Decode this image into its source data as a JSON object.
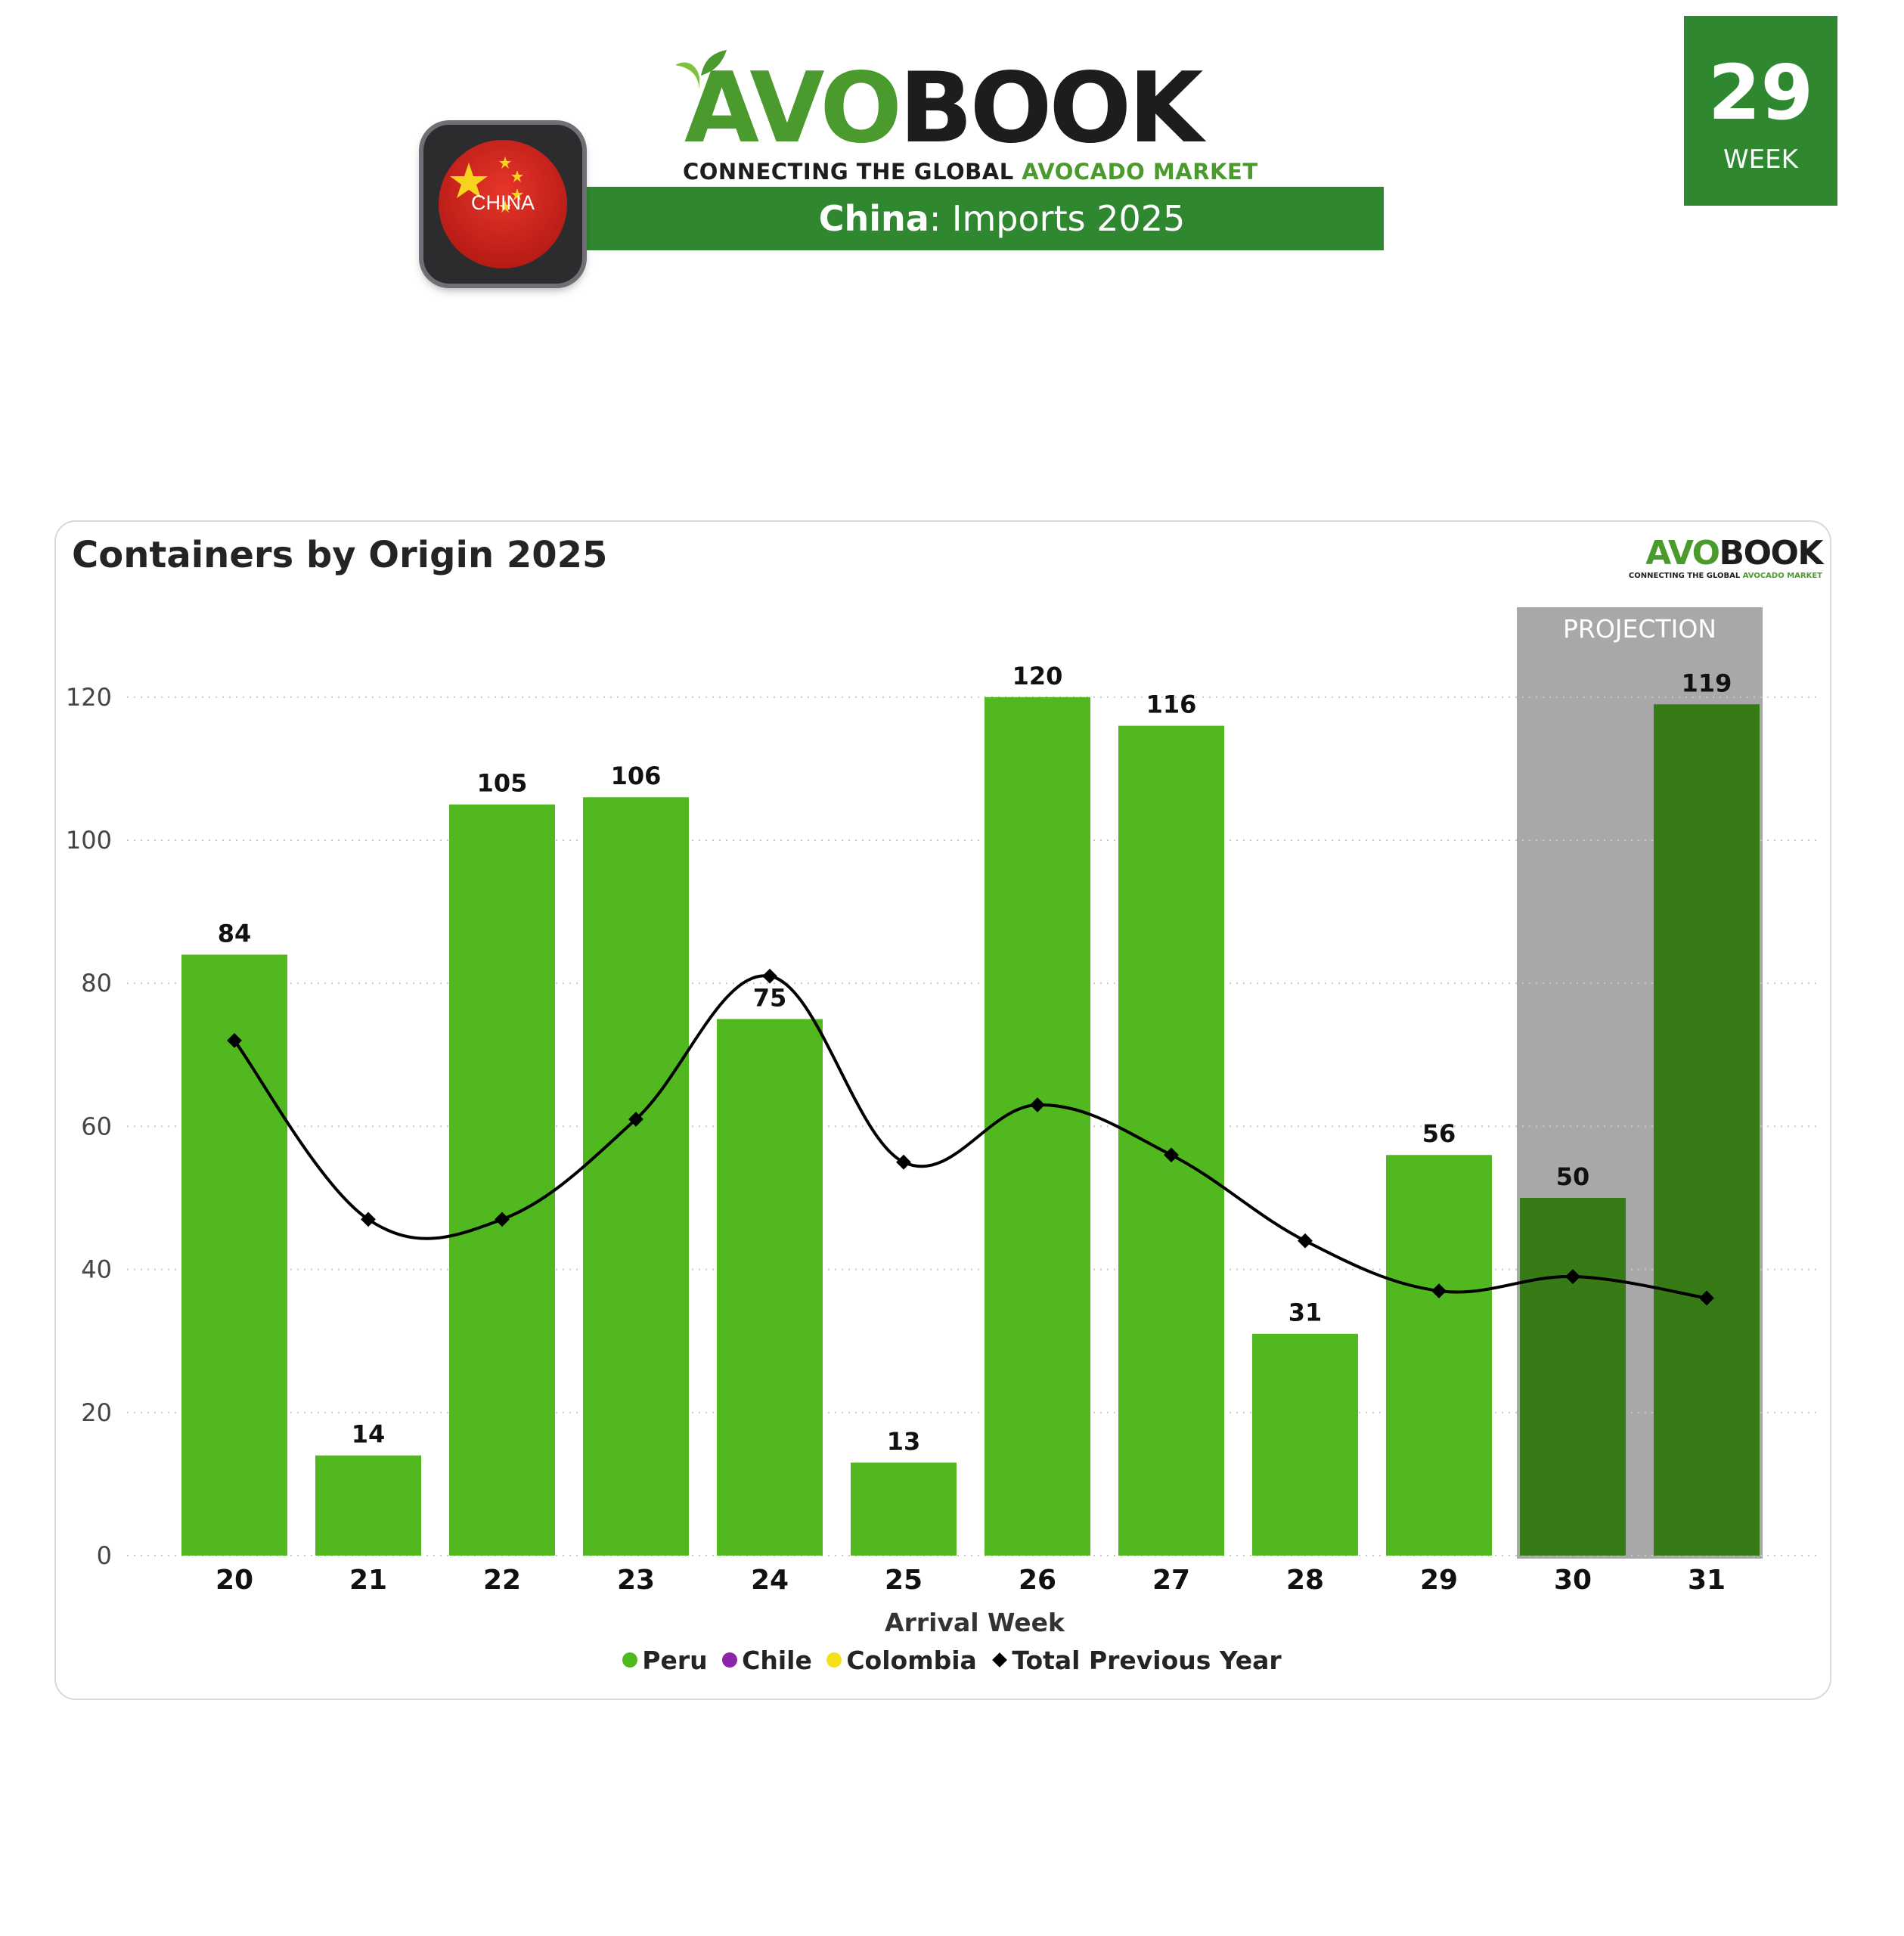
{
  "header": {
    "logo_avo": "AVO",
    "logo_book": "BOOK",
    "tagline_part1": "CONNECTING THE GLOBAL ",
    "tagline_part2": "AVOCADO MARKET",
    "title_country": "China",
    "title_rest": ": Imports 2025",
    "flag_label": "CHINA",
    "week_number": "29",
    "week_label": "WEEK"
  },
  "colors": {
    "brand_green": "#2f8830",
    "peru_bar": "#52b820",
    "projection_bar": "#377b17",
    "projection_band": "#a8a8a8",
    "chile": "#8e24aa",
    "colombia": "#f4e01a",
    "previous_year_line": "#000000"
  },
  "chart_data": {
    "type": "bar",
    "title": "Containers by Origin 2025",
    "xlabel": "Arrival Week",
    "ylabel": "",
    "categories": [
      "20",
      "21",
      "22",
      "23",
      "24",
      "25",
      "26",
      "27",
      "28",
      "29",
      "30",
      "31"
    ],
    "series": [
      {
        "name": "Peru",
        "type": "bar",
        "values": [
          84,
          14,
          105,
          106,
          75,
          13,
          120,
          116,
          31,
          56,
          50,
          119
        ]
      },
      {
        "name": "Chile",
        "type": "bar",
        "values": [
          0,
          0,
          0,
          0,
          0,
          0,
          0,
          0,
          0,
          0,
          0,
          0
        ]
      },
      {
        "name": "Colombia",
        "type": "bar",
        "values": [
          0,
          0,
          0,
          0,
          0,
          0,
          0,
          0,
          0,
          0,
          0,
          0
        ]
      },
      {
        "name": "Total Previous Year",
        "type": "line",
        "values": [
          72,
          47,
          47,
          61,
          81,
          55,
          63,
          56,
          44,
          37,
          39,
          36
        ]
      }
    ],
    "data_labels": [
      "84",
      "14",
      "105",
      "106",
      "75",
      "13",
      "120",
      "116",
      "31",
      "56",
      "50",
      "119"
    ],
    "projection": {
      "label": "PROJECTION",
      "categories": [
        "30",
        "31"
      ]
    },
    "yticks": [
      0,
      20,
      40,
      60,
      80,
      100,
      120
    ],
    "ylim": [
      0,
      132
    ],
    "grid": true,
    "legend_position": "bottom-center"
  },
  "watermark": {
    "avo": "AVO",
    "book": "BOOK",
    "tag_part1": "CONNECTING THE GLOBAL ",
    "tag_part2": "AVOCADO MARKET"
  }
}
